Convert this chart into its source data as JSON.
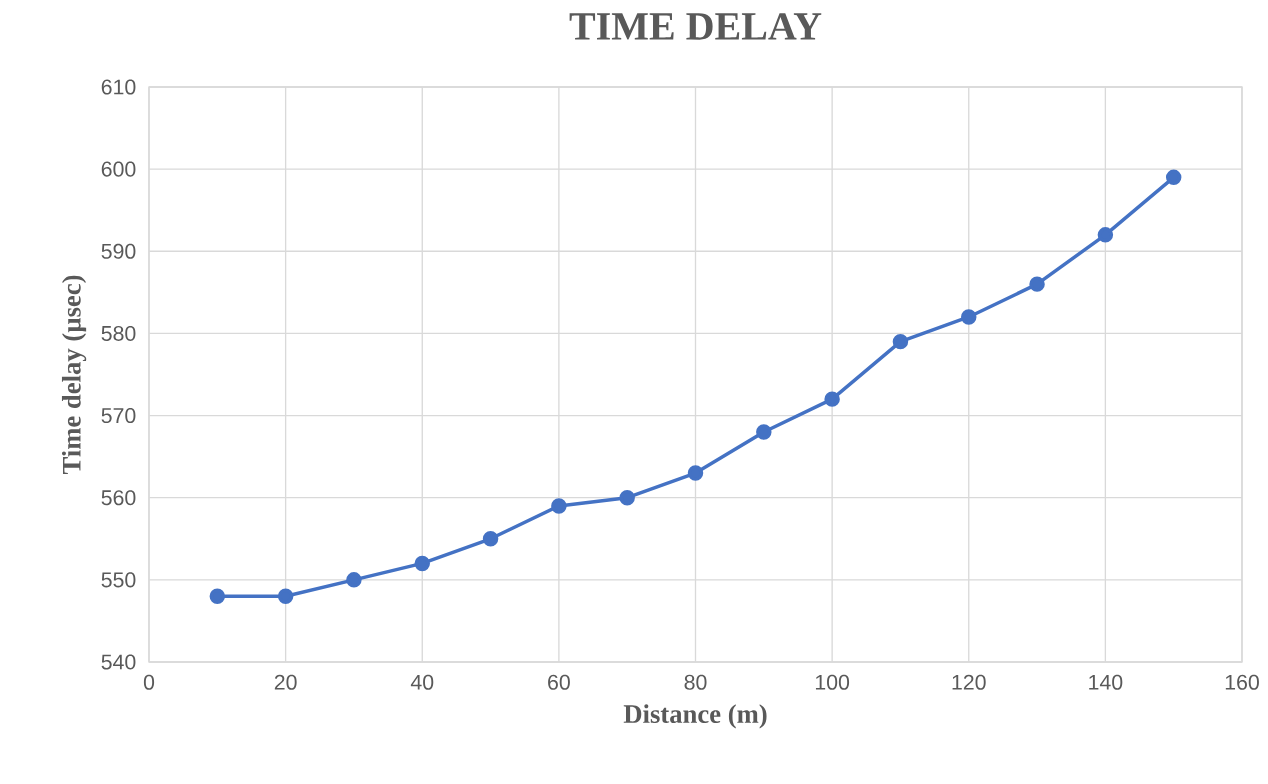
{
  "chart_data": {
    "type": "line",
    "title": "TIME DELAY",
    "xlabel": "Distance (m)",
    "ylabel": "Time delay (µsec)",
    "x": [
      10,
      20,
      30,
      40,
      50,
      60,
      70,
      80,
      90,
      100,
      110,
      120,
      130,
      140,
      150
    ],
    "series": [
      {
        "color": "#4472c4",
        "values": [
          548,
          548,
          550,
          552,
          555,
          559,
          560,
          563,
          568,
          572,
          579,
          582,
          586,
          592,
          599
        ]
      }
    ],
    "xlim": [
      0,
      160
    ],
    "xticks": [
      0,
      20,
      40,
      60,
      80,
      100,
      120,
      140,
      160
    ],
    "ylim": [
      540,
      610
    ],
    "yticks": [
      540,
      550,
      560,
      570,
      580,
      590,
      600,
      610
    ],
    "grid": true,
    "marker": "circle",
    "line_style": "solid"
  }
}
